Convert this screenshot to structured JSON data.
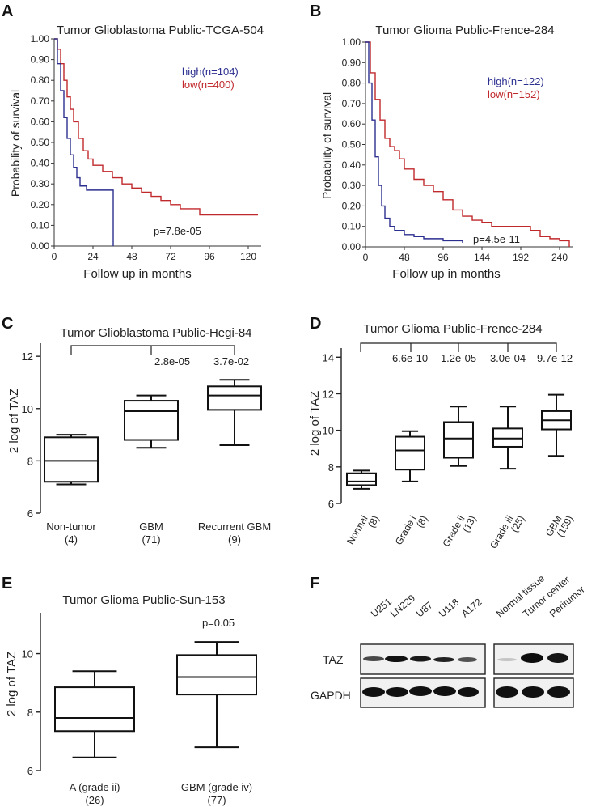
{
  "panels": {
    "A": {
      "letter": "A",
      "title": "Tumor Glioblastoma Public-TCGA-504",
      "ylabel": "Probability of survival",
      "xlabel": "Follow up in months",
      "yticks": [
        "0.00",
        "0.10",
        "0.20",
        "0.30",
        "0.40",
        "0.50",
        "0.60",
        "0.70",
        "0.80",
        "0.90",
        "1.00"
      ],
      "xticks": [
        "0",
        "24",
        "48",
        "72",
        "96",
        "120"
      ],
      "legend": [
        {
          "label": "high(n=104)",
          "color": "#2b2f8f"
        },
        {
          "label": "low(n=400)",
          "color": "#c0282b"
        }
      ],
      "pvalue": "p=7.8e-05"
    },
    "B": {
      "letter": "B",
      "title": "Tumor Glioma Public-Frence-284",
      "ylabel": "Probability of survival",
      "xlabel": "Follow up in months",
      "yticks": [
        "0.00",
        "0.10",
        "0.20",
        "0.30",
        "0.40",
        "0.50",
        "0.60",
        "0.70",
        "0.80",
        "0.90",
        "1.00"
      ],
      "xticks": [
        "0",
        "48",
        "96",
        "144",
        "192",
        "240"
      ],
      "legend": [
        {
          "label": "high(n=122)",
          "color": "#2b2f8f"
        },
        {
          "label": "low(n=152)",
          "color": "#c0282b"
        }
      ],
      "pvalue": "p=4.5e-11"
    },
    "C": {
      "letter": "C",
      "title": "Tumor Glioblastoma Public-Hegi-84",
      "ylabel": "2 log of TAZ",
      "yticks": [
        "6",
        "8",
        "10",
        "12"
      ],
      "groups": [
        {
          "name": "Non-tumor",
          "n": "(4)"
        },
        {
          "name": "GBM",
          "n": "(71)"
        },
        {
          "name": "Recurrent GBM",
          "n": "(9)"
        }
      ],
      "pvalues": [
        "2.8e-05",
        "3.7e-02"
      ]
    },
    "D": {
      "letter": "D",
      "title": "Tumor Glioma Public-Frence-284",
      "ylabel": "2 log of TAZ",
      "yticks": [
        "6",
        "8",
        "10",
        "12",
        "14"
      ],
      "groups": [
        {
          "name": "Normal",
          "n": "(8)"
        },
        {
          "name": "Grade i",
          "n": "(8)"
        },
        {
          "name": "Grade ii",
          "n": "(13)"
        },
        {
          "name": "Grade iii",
          "n": "(25)"
        },
        {
          "name": "GBM",
          "n": "(159)"
        }
      ],
      "pvalues": [
        "6.6e-10",
        "1.2e-05",
        "3.0e-04",
        "9.7e-12"
      ]
    },
    "E": {
      "letter": "E",
      "title": "Tumor Glioma Public-Sun-153",
      "ylabel": "2 log of TAZ",
      "yticks": [
        "6",
        "8",
        "10"
      ],
      "groups": [
        {
          "name": "A (grade ii)",
          "n": "(26)"
        },
        {
          "name": "GBM (grade iv)",
          "n": "(77)"
        }
      ],
      "pvalue": "p=0.05"
    },
    "F": {
      "letter": "F",
      "cell_lines": [
        "U251",
        "LN229",
        "U87",
        "U118",
        "A172"
      ],
      "tissues": [
        "Normal tissue",
        "Tumor center",
        "Peritumor"
      ],
      "rows": [
        "TAZ",
        "GAPDH"
      ]
    }
  },
  "chart_data": [
    {
      "type": "line",
      "title": "Tumor Glioblastoma Public-TCGA-504",
      "xlabel": "Follow up in months",
      "ylabel": "Probability of survival",
      "xlim": [
        0,
        128
      ],
      "ylim": [
        0,
        1
      ],
      "series": [
        {
          "name": "high(n=104)",
          "x": [
            0,
            2,
            4,
            6,
            8,
            10,
            12,
            14,
            16,
            20,
            24,
            30,
            36,
            36.5
          ],
          "y": [
            1.0,
            0.88,
            0.75,
            0.62,
            0.52,
            0.44,
            0.38,
            0.33,
            0.29,
            0.27,
            0.27,
            0.27,
            0.27,
            0.0
          ]
        },
        {
          "name": "low(n=400)",
          "x": [
            0,
            2,
            4,
            6,
            8,
            10,
            12,
            15,
            18,
            21,
            24,
            30,
            36,
            42,
            48,
            54,
            60,
            66,
            72,
            78,
            90,
            102,
            114,
            126
          ],
          "y": [
            1.0,
            0.95,
            0.88,
            0.8,
            0.72,
            0.66,
            0.6,
            0.52,
            0.46,
            0.42,
            0.39,
            0.36,
            0.33,
            0.3,
            0.28,
            0.26,
            0.24,
            0.22,
            0.2,
            0.18,
            0.15,
            0.15,
            0.15,
            0.15
          ]
        }
      ]
    },
    {
      "type": "line",
      "title": "Tumor Glioma Public-Frence-284",
      "xlabel": "Follow up in months",
      "ylabel": "Probability of survival",
      "xlim": [
        0,
        256
      ],
      "ylim": [
        0,
        1
      ],
      "series": [
        {
          "name": "high(n=122)",
          "x": [
            0,
            4,
            8,
            12,
            16,
            20,
            24,
            30,
            36,
            48,
            60,
            72,
            84,
            96,
            108,
            116,
            120
          ],
          "y": [
            1.0,
            0.8,
            0.62,
            0.44,
            0.3,
            0.2,
            0.14,
            0.1,
            0.08,
            0.06,
            0.05,
            0.04,
            0.04,
            0.03,
            0.03,
            0.03,
            0.02
          ]
        },
        {
          "name": "low(n=152)",
          "x": [
            0,
            6,
            12,
            18,
            24,
            30,
            36,
            42,
            48,
            60,
            72,
            84,
            96,
            108,
            120,
            132,
            144,
            156,
            168,
            180,
            192,
            204,
            216,
            228,
            240,
            252
          ],
          "y": [
            1.0,
            0.85,
            0.72,
            0.62,
            0.53,
            0.49,
            0.47,
            0.43,
            0.38,
            0.33,
            0.3,
            0.27,
            0.23,
            0.18,
            0.15,
            0.13,
            0.12,
            0.1,
            0.1,
            0.1,
            0.1,
            0.08,
            0.05,
            0.04,
            0.03,
            0.0
          ]
        }
      ]
    },
    {
      "type": "box",
      "title": "Tumor Glioblastoma Public-Hegi-84",
      "ylabel": "2 log of TAZ",
      "ylim": [
        6,
        12.5
      ],
      "categories": [
        "Non-tumor (4)",
        "GBM (71)",
        "Recurrent GBM (9)"
      ],
      "boxes": [
        {
          "min": 7.1,
          "q1": 7.2,
          "median": 8.0,
          "q3": 8.9,
          "max": 9.0
        },
        {
          "min": 8.5,
          "q1": 8.8,
          "median": 9.9,
          "q3": 10.3,
          "max": 10.5
        },
        {
          "min": 8.6,
          "q1": 9.95,
          "median": 10.5,
          "q3": 10.85,
          "max": 11.1
        }
      ],
      "pvalues": [
        "2.8e-05",
        "3.7e-02"
      ]
    },
    {
      "type": "box",
      "title": "Tumor Glioma Public-Frence-284",
      "ylabel": "2 log of TAZ",
      "ylim": [
        6,
        14.5
      ],
      "categories": [
        "Normal (8)",
        "Grade i (8)",
        "Grade ii (13)",
        "Grade iii (25)",
        "GBM (159)"
      ],
      "boxes": [
        {
          "min": 6.8,
          "q1": 7.0,
          "median": 7.2,
          "q3": 7.65,
          "max": 7.8
        },
        {
          "min": 7.2,
          "q1": 7.85,
          "median": 8.9,
          "q3": 9.65,
          "max": 9.95
        },
        {
          "min": 8.05,
          "q1": 8.5,
          "median": 9.55,
          "q3": 10.45,
          "max": 11.3
        },
        {
          "min": 7.9,
          "q1": 9.1,
          "median": 9.55,
          "q3": 10.1,
          "max": 11.3
        },
        {
          "min": 8.6,
          "q1": 10.05,
          "median": 10.55,
          "q3": 11.05,
          "max": 11.95
        }
      ],
      "pvalues": [
        "6.6e-10",
        "1.2e-05",
        "3.0e-04",
        "9.7e-12"
      ]
    },
    {
      "type": "box",
      "title": "Tumor Glioma Public-Sun-153",
      "ylabel": "2 log of TAZ",
      "ylim": [
        6,
        11.4
      ],
      "categories": [
        "A (grade ii) (26)",
        "GBM (grade iv) (77)"
      ],
      "boxes": [
        {
          "min": 6.45,
          "q1": 7.35,
          "median": 7.8,
          "q3": 8.85,
          "max": 9.4
        },
        {
          "min": 6.8,
          "q1": 8.6,
          "median": 9.2,
          "q3": 9.95,
          "max": 10.4
        }
      ],
      "pvalue": "p=0.05"
    }
  ]
}
